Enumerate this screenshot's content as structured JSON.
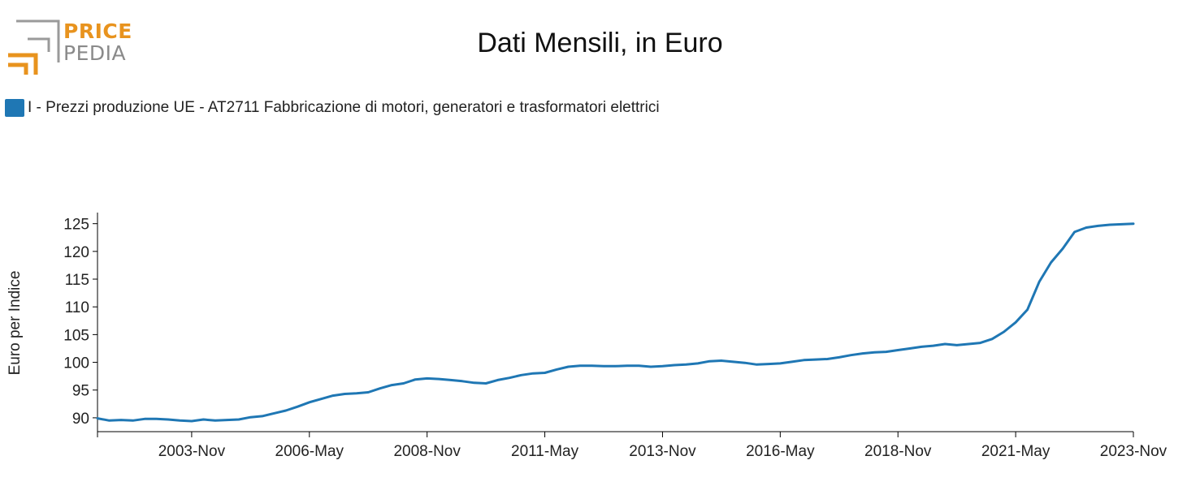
{
  "logo": {
    "line1": "PRICE",
    "line2": "PEDIA",
    "accent": "#e8931e",
    "gray": "#8a8a8a"
  },
  "colors": {
    "series": "#1f77b4",
    "axis": "#000000"
  },
  "chart_data": {
    "type": "line",
    "title": "Dati Mensili, in Euro",
    "xlabel": "",
    "ylabel": "Euro per Indice",
    "ylim": [
      87.5,
      127
    ],
    "yticks": [
      90,
      95,
      100,
      105,
      110,
      115,
      120,
      125
    ],
    "xrange": [
      "2001-Nov",
      "2023-Nov"
    ],
    "xticks": [
      "2003-Nov",
      "2006-May",
      "2008-Nov",
      "2011-May",
      "2013-Nov",
      "2016-May",
      "2018-Nov",
      "2021-May",
      "2023-Nov"
    ],
    "legend_position": "top-left",
    "series": [
      {
        "name": "I - Prezzi produzione UE - AT2711 Fabbricazione di motori, generatori e trasformatori elettrici",
        "color": "#1f77b4",
        "x": [
          "2001-Nov",
          "2002-Feb",
          "2002-May",
          "2002-Aug",
          "2002-Nov",
          "2003-Feb",
          "2003-May",
          "2003-Aug",
          "2003-Nov",
          "2004-Feb",
          "2004-May",
          "2004-Aug",
          "2004-Nov",
          "2005-Feb",
          "2005-May",
          "2005-Aug",
          "2005-Nov",
          "2006-Feb",
          "2006-May",
          "2006-Aug",
          "2006-Nov",
          "2007-Feb",
          "2007-May",
          "2007-Aug",
          "2007-Nov",
          "2008-Feb",
          "2008-May",
          "2008-Aug",
          "2008-Nov",
          "2009-Feb",
          "2009-May",
          "2009-Aug",
          "2009-Nov",
          "2010-Feb",
          "2010-May",
          "2010-Aug",
          "2010-Nov",
          "2011-Feb",
          "2011-May",
          "2011-Aug",
          "2011-Nov",
          "2012-Feb",
          "2012-May",
          "2012-Aug",
          "2012-Nov",
          "2013-Feb",
          "2013-May",
          "2013-Aug",
          "2013-Nov",
          "2014-Feb",
          "2014-May",
          "2014-Aug",
          "2014-Nov",
          "2015-Feb",
          "2015-May",
          "2015-Aug",
          "2015-Nov",
          "2016-Feb",
          "2016-May",
          "2016-Aug",
          "2016-Nov",
          "2017-Feb",
          "2017-May",
          "2017-Aug",
          "2017-Nov",
          "2018-Feb",
          "2018-May",
          "2018-Aug",
          "2018-Nov",
          "2019-Feb",
          "2019-May",
          "2019-Aug",
          "2019-Nov",
          "2020-Feb",
          "2020-May",
          "2020-Aug",
          "2020-Nov",
          "2021-Feb",
          "2021-May",
          "2021-Aug",
          "2021-Nov",
          "2022-Feb",
          "2022-May",
          "2022-Aug",
          "2022-Nov",
          "2023-Feb",
          "2023-May",
          "2023-Aug",
          "2023-Nov"
        ],
        "values": [
          89.9,
          89.5,
          89.6,
          89.5,
          89.8,
          89.8,
          89.7,
          89.5,
          89.4,
          89.7,
          89.5,
          89.6,
          89.7,
          90.1,
          90.3,
          90.8,
          91.3,
          92.0,
          92.8,
          93.4,
          94.0,
          94.3,
          94.4,
          94.6,
          95.3,
          95.9,
          96.2,
          96.9,
          97.1,
          97.0,
          96.8,
          96.6,
          96.3,
          96.2,
          96.8,
          97.2,
          97.7,
          98.0,
          98.1,
          98.7,
          99.2,
          99.4,
          99.4,
          99.3,
          99.3,
          99.4,
          99.4,
          99.2,
          99.3,
          99.5,
          99.6,
          99.8,
          100.2,
          100.3,
          100.1,
          99.9,
          99.6,
          99.7,
          99.8,
          100.1,
          100.4,
          100.5,
          100.6,
          100.9,
          101.3,
          101.6,
          101.8,
          101.9,
          102.2,
          102.5,
          102.8,
          103.0,
          103.3,
          103.1,
          103.3,
          103.5,
          104.2,
          105.5,
          107.2,
          109.5,
          114.5,
          118.0,
          120.5,
          123.5,
          124.3,
          124.6,
          124.8,
          124.9,
          125.0
        ]
      }
    ]
  }
}
